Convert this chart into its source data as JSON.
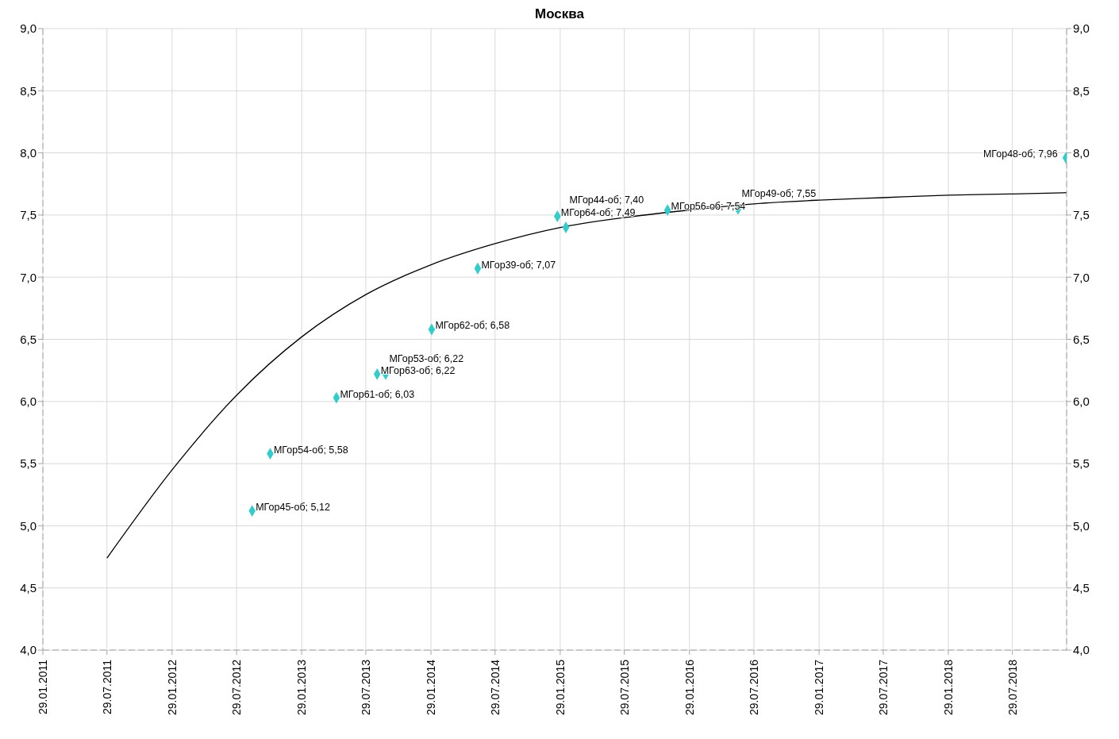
{
  "chart_data": {
    "type": "scatter",
    "title": "Москва",
    "xlim": [
      "2011-01-29",
      "2018-12-29"
    ],
    "xticks": [
      {
        "value": "2011-01-29",
        "label": "29.01.2011"
      },
      {
        "value": "2011-07-29",
        "label": "29.07.2011"
      },
      {
        "value": "2012-01-29",
        "label": "29.01.2012"
      },
      {
        "value": "2012-07-29",
        "label": "29.07.2012"
      },
      {
        "value": "2013-01-29",
        "label": "29.01.2013"
      },
      {
        "value": "2013-07-29",
        "label": "29.07.2013"
      },
      {
        "value": "2014-01-29",
        "label": "29.01.2014"
      },
      {
        "value": "2014-07-29",
        "label": "29.07.2014"
      },
      {
        "value": "2015-01-29",
        "label": "29.01.2015"
      },
      {
        "value": "2015-07-29",
        "label": "29.07.2015"
      },
      {
        "value": "2016-01-29",
        "label": "29.01.2016"
      },
      {
        "value": "2016-07-29",
        "label": "29.07.2016"
      },
      {
        "value": "2017-01-29",
        "label": "29.01.2017"
      },
      {
        "value": "2017-07-29",
        "label": "29.07.2017"
      },
      {
        "value": "2018-01-29",
        "label": "29.01.2018"
      },
      {
        "value": "2018-07-29",
        "label": "29.07.2018"
      }
    ],
    "ylim": [
      4,
      9
    ],
    "yticks": [
      {
        "value": 4,
        "label": "4,0"
      },
      {
        "value": 4.5,
        "label": "4,5"
      },
      {
        "value": 5,
        "label": "5,0"
      },
      {
        "value": 5.5,
        "label": "5,5"
      },
      {
        "value": 6,
        "label": "6,0"
      },
      {
        "value": 6.5,
        "label": "6,5"
      },
      {
        "value": 7,
        "label": "7,0"
      },
      {
        "value": 7.5,
        "label": "7,5"
      },
      {
        "value": 8,
        "label": "8,0"
      },
      {
        "value": 8.5,
        "label": "8,5"
      },
      {
        "value": 9,
        "label": "9,0"
      }
    ],
    "y2lim": [
      4,
      9
    ],
    "y2ticks": [
      {
        "value": 4,
        "label": "4,0"
      },
      {
        "value": 4.5,
        "label": "4,5"
      },
      {
        "value": 5,
        "label": "5,0"
      },
      {
        "value": 5.5,
        "label": "5,5"
      },
      {
        "value": 6,
        "label": "6,0"
      },
      {
        "value": 6.5,
        "label": "6,5"
      },
      {
        "value": 7,
        "label": "7,0"
      },
      {
        "value": 7.5,
        "label": "7,5"
      },
      {
        "value": 8,
        "label": "8,0"
      },
      {
        "value": 8.5,
        "label": "8,5"
      },
      {
        "value": 9,
        "label": "9,0"
      }
    ],
    "grid": true,
    "series": [
      {
        "marker": "diamond",
        "color": "#33cccc",
        "x": [
          "2012-09-11",
          "2012-11-01",
          "2013-05-07",
          "2013-08-30",
          "2013-09-23",
          "2014-01-31",
          "2014-06-10",
          "2015-01-21",
          "2015-02-14",
          "2015-11-28",
          "2016-06-14",
          "2018-12-27"
        ],
        "values": [
          5.12,
          5.58,
          6.03,
          6.22,
          6.22,
          6.58,
          7.07,
          7.49,
          7.4,
          7.54,
          7.55,
          7.96
        ],
        "value_labels": [
          "МГор45-об;  5,12",
          "МГор54-об;  5,58",
          "МГор61-об;  6,03",
          "МГор63-об;  6,22",
          "МГор53-об;  6,22",
          "МГор62-об;  6,58",
          "МГор39-об;  7,07",
          "МГор64-об;  7,49",
          "МГор44-об;  7,40",
          "МГор56-об;  7,54",
          "МГор49-об;  7,55",
          "МГор48-об;  7,96"
        ]
      },
      {
        "type": "line",
        "marker": "none",
        "color": "#000000",
        "x": [
          "2011-07-29",
          "2012-01-29",
          "2012-07-29",
          "2013-01-29",
          "2013-07-29",
          "2014-01-29",
          "2014-07-29",
          "2015-01-29",
          "2015-07-29",
          "2016-01-29",
          "2016-07-29",
          "2017-01-29",
          "2017-07-29",
          "2018-01-29",
          "2018-07-29",
          "2018-12-29"
        ],
        "values": [
          4.74,
          5.45,
          6.05,
          6.52,
          6.86,
          7.1,
          7.27,
          7.4,
          7.48,
          7.54,
          7.59,
          7.62,
          7.64,
          7.66,
          7.67,
          7.68
        ]
      }
    ]
  }
}
